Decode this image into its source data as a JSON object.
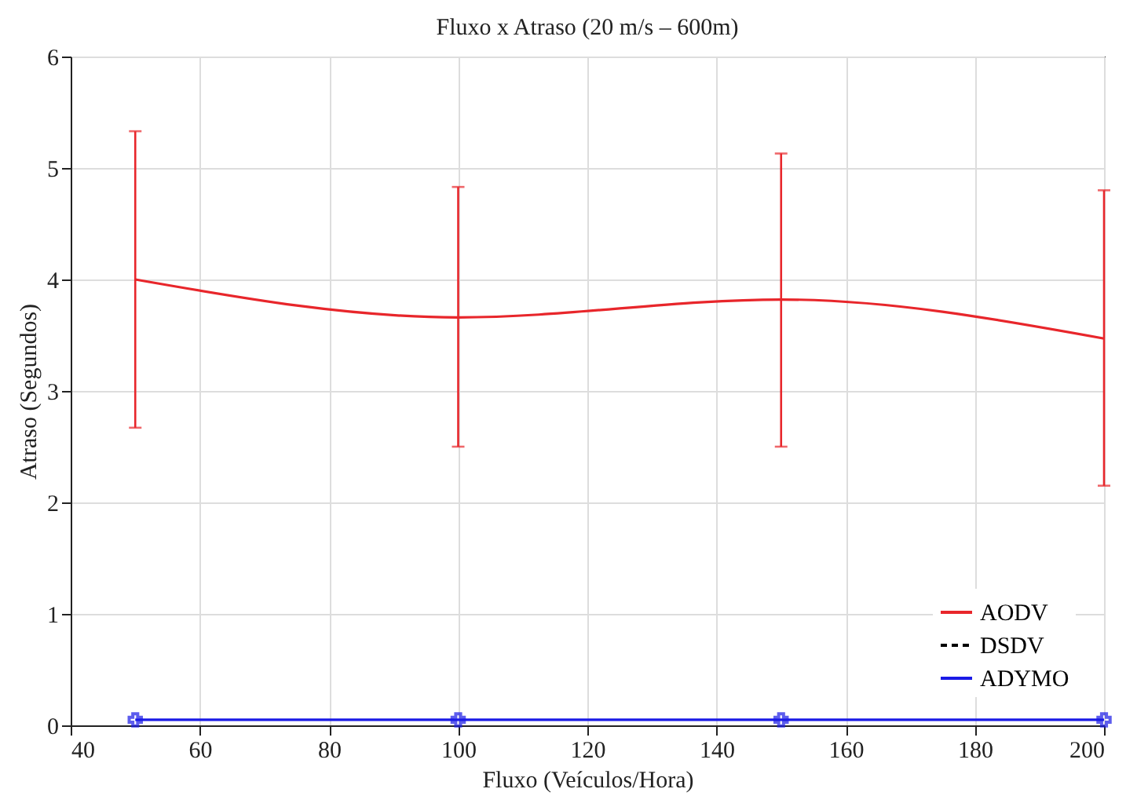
{
  "chart_data": {
    "type": "line",
    "title": "Fluxo x Atraso (20 m/s – 600m)",
    "xlabel": "Fluxo (Veículos/Hora)",
    "ylabel": "Atraso (Segundos)",
    "x": [
      50,
      100,
      150,
      200
    ],
    "series": [
      {
        "name": "AODV",
        "color": "#e8262b",
        "values": [
          4.0,
          3.66,
          3.82,
          3.47
        ],
        "errors": [
          [
            2.67,
            5.33
          ],
          [
            2.5,
            4.83
          ],
          [
            2.5,
            5.13
          ],
          [
            2.15,
            4.8
          ]
        ],
        "line_style": "solid",
        "marker": "none"
      },
      {
        "name": "DSDV",
        "color": "#000000",
        "values": [
          null,
          null,
          null,
          null
        ],
        "line_style": "dashed",
        "marker": "none"
      },
      {
        "name": "ADYMO",
        "color": "#1a1ae6",
        "values": [
          0.05,
          0.05,
          0.05,
          0.05
        ],
        "line_style": "solid",
        "marker": "cross"
      }
    ],
    "xlim": [
      40,
      200
    ],
    "xticks": [
      40,
      60,
      80,
      100,
      120,
      140,
      160,
      180,
      200
    ],
    "ylim": [
      0,
      6
    ],
    "yticks": [
      0,
      1,
      2,
      3,
      4,
      5,
      6
    ],
    "grid": true,
    "legend": "bottom right"
  }
}
